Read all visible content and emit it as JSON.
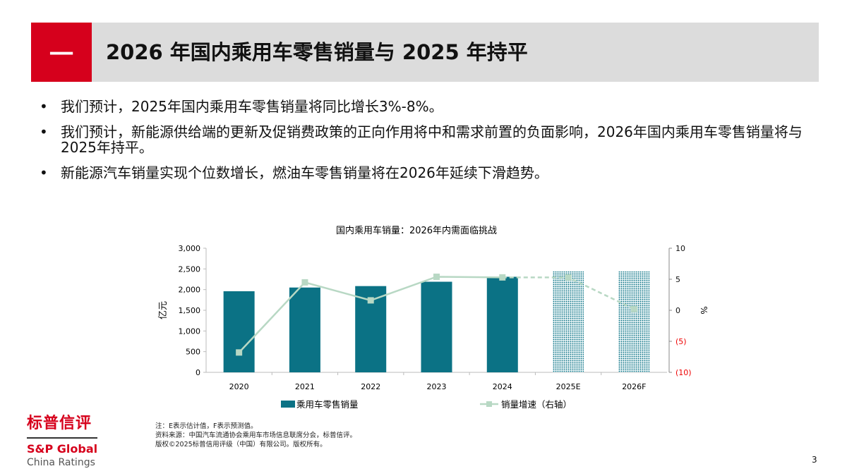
{
  "header": {
    "number": "一",
    "title": "2026 年国内乘用车零售销量与 2025 年持平"
  },
  "bullets": [
    "我们预计，2025年国内乘用车零售销量将同比增长3%-8%。",
    "我们预计，新能源供给端的更新及促销费政策的正向作用将中和需求前置的负面影响，2026年国内乘用车零售销量将与2025年持平。",
    "新能源汽车销量实现个位数增长，燃油车零售销量将在2026年延续下滑趋势。"
  ],
  "chart_data": {
    "type": "bar",
    "title": "国内乘用车销量：2026年内需面临挑战",
    "categories": [
      "2020",
      "2021",
      "2022",
      "2023",
      "2024",
      "2025E",
      "2026F"
    ],
    "ylabel": "亿元",
    "y2label": "%",
    "ylim": [
      0,
      3000
    ],
    "y2lim": [
      -10,
      10
    ],
    "yticks": [
      "3,000",
      "2,500",
      "2,000",
      "1,500",
      "1,000",
      "500",
      "0"
    ],
    "y2ticks": [
      "10",
      "5",
      "0",
      "(5)",
      "(10)"
    ],
    "series": [
      {
        "name": "乘用车零售销量",
        "type": "bar",
        "axis": "left",
        "values": [
          1960,
          2050,
          2085,
          2190,
          2310,
          2440,
          2440
        ],
        "color": "#0b7285",
        "forecast_pattern": "dotted",
        "forecast_from": "2025E"
      },
      {
        "name": "销量增速（右轴）",
        "type": "line",
        "axis": "right",
        "values": [
          -6.8,
          4.5,
          1.6,
          5.4,
          5.3,
          5.3,
          0.2
        ],
        "color": "#b8d8c4",
        "dashed_from": "2024"
      }
    ],
    "grid": false,
    "legend": "bottom"
  },
  "notes": [
    "注：E表示估计值，F表示预测值。",
    "资料来源：中国汽车流通协会乘用车市场信息联席分会，标普信评。",
    "版权©2025标普信用评级（中国）有限公司。版权所有。"
  ],
  "logo": {
    "cn": "标普信评",
    "en": "S&P Global",
    "sub": "China Ratings"
  },
  "page_number": "3"
}
